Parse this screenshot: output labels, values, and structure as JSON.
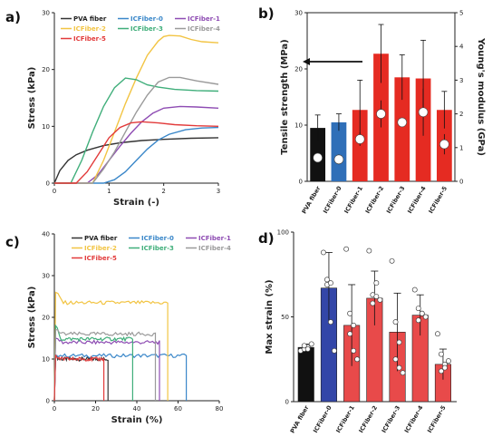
{
  "colors": {
    "PVA fiber": "#333333",
    "ICFiber-0": "#3a87c9",
    "ICFiber-1": "#8e4cb3",
    "ICFiber-2": "#f2c443",
    "ICFiber-3": "#3fae7a",
    "ICFiber-4": "#9a9a9a",
    "ICFiber-5": "#e23a3a"
  },
  "legend_order": [
    "PVA fiber",
    "ICFiber-0",
    "ICFiber-1",
    "ICFiber-2",
    "ICFiber-3",
    "ICFiber-4",
    "ICFiber-5"
  ],
  "chart_data": [
    {
      "panel": "a)",
      "type": "line",
      "xlabel": "Strain (-)",
      "ylabel": "Stress (kPa)",
      "xlim": [
        0,
        3
      ],
      "ylim": [
        0,
        30
      ],
      "xticks": [
        0,
        1,
        2,
        3
      ],
      "yticks": [
        0,
        10,
        20,
        30
      ],
      "series": [
        {
          "name": "PVA fiber",
          "x": [
            0,
            0.1,
            0.25,
            0.4,
            0.6,
            0.9,
            1.2,
            1.6,
            2.0,
            2.5,
            3.0
          ],
          "y": [
            0,
            2.2,
            4.0,
            5.0,
            5.8,
            6.6,
            7.1,
            7.5,
            7.7,
            7.9,
            8.0
          ]
        },
        {
          "name": "ICFiber-0",
          "x": [
            0,
            0.9,
            1.1,
            1.3,
            1.5,
            1.7,
            1.9,
            2.1,
            2.4,
            2.7,
            3.0
          ],
          "y": [
            0,
            0,
            0.6,
            2.0,
            4.0,
            6.0,
            7.6,
            8.6,
            9.4,
            9.7,
            9.8
          ]
        },
        {
          "name": "ICFiber-1",
          "x": [
            0,
            0.6,
            0.8,
            1.0,
            1.2,
            1.4,
            1.6,
            1.8,
            2.0,
            2.3,
            2.6,
            3.0
          ],
          "y": [
            0,
            0,
            1.5,
            4.0,
            6.5,
            8.8,
            10.8,
            12.3,
            13.2,
            13.5,
            13.4,
            13.2
          ]
        },
        {
          "name": "ICFiber-2",
          "x": [
            0,
            0.7,
            0.9,
            1.1,
            1.3,
            1.5,
            1.7,
            1.9,
            2.0,
            2.1,
            2.3,
            2.5,
            2.7,
            3.0
          ],
          "y": [
            0,
            0,
            4.0,
            9.0,
            14.0,
            18.5,
            22.5,
            25.0,
            25.8,
            26.0,
            25.9,
            25.3,
            24.9,
            24.7
          ]
        },
        {
          "name": "ICFiber-3",
          "x": [
            0,
            0.3,
            0.5,
            0.7,
            0.9,
            1.1,
            1.3,
            1.5,
            1.7,
            1.9,
            2.2,
            2.6,
            3.0
          ],
          "y": [
            0,
            0,
            4.0,
            9.0,
            13.5,
            16.8,
            18.5,
            18.2,
            17.3,
            16.9,
            16.5,
            16.3,
            16.2
          ]
        },
        {
          "name": "ICFiber-4",
          "x": [
            0,
            0.7,
            0.9,
            1.1,
            1.3,
            1.5,
            1.7,
            1.9,
            2.1,
            2.3,
            2.6,
            3.0
          ],
          "y": [
            0,
            0,
            2.5,
            5.5,
            9.0,
            12.5,
            15.5,
            17.8,
            18.6,
            18.6,
            18.0,
            17.4
          ]
        },
        {
          "name": "ICFiber-5",
          "x": [
            0,
            0.4,
            0.6,
            0.8,
            1.0,
            1.2,
            1.4,
            1.6,
            1.9,
            2.2,
            2.6,
            3.0
          ],
          "y": [
            0,
            0,
            2.0,
            5.0,
            8.0,
            9.8,
            10.6,
            10.8,
            10.6,
            10.3,
            10.1,
            10.0
          ]
        }
      ]
    },
    {
      "panel": "b)",
      "type": "bar",
      "ylabel": "Tensile strength (MPa)",
      "y2label": "Young's modulus (GPa)",
      "ylim": [
        0,
        30
      ],
      "yticks": [
        0,
        10,
        20,
        30
      ],
      "y2lim": [
        0,
        5
      ],
      "y2ticks": [
        0,
        1,
        2,
        3,
        4,
        5
      ],
      "categories": [
        "PVA fiber",
        "ICFiber-0",
        "ICFiber-1",
        "ICFiber-2",
        "ICFiber-3",
        "ICFiber-4",
        "ICFiber-5"
      ],
      "values": [
        9.5,
        10.5,
        12.7,
        22.7,
        18.5,
        18.3,
        12.7
      ],
      "errors": [
        2.3,
        1.5,
        5.3,
        5.2,
        4.0,
        6.8,
        3.3
      ],
      "modulus": [
        0.7,
        0.65,
        1.25,
        2.0,
        1.75,
        2.05,
        1.1
      ],
      "modulus_errors": [
        0,
        0.15,
        0.2,
        0.4,
        0,
        0.7,
        0.3
      ]
    },
    {
      "panel": "c)",
      "type": "line",
      "xlabel": "Strain (%)",
      "ylabel": "Stress (kPa)",
      "xlim": [
        0,
        80
      ],
      "ylim": [
        0,
        40
      ],
      "xticks": [
        0,
        20,
        40,
        60,
        80
      ],
      "yticks": [
        0,
        10,
        20,
        30,
        40
      ],
      "series": [
        {
          "name": "PVA fiber",
          "level": 10,
          "end": 26,
          "start_peak": 10.5
        },
        {
          "name": "ICFiber-0",
          "level": 10.8,
          "end": 64,
          "start_peak": 11
        },
        {
          "name": "ICFiber-1",
          "level": 14,
          "end": 51,
          "start_peak": 15
        },
        {
          "name": "ICFiber-2",
          "level": 23.5,
          "end": 55,
          "start_peak": 26
        },
        {
          "name": "ICFiber-3",
          "level": 14.8,
          "end": 38,
          "start_peak": 18
        },
        {
          "name": "ICFiber-4",
          "level": 16,
          "end": 49,
          "start_peak": 17
        },
        {
          "name": "ICFiber-5",
          "level": 10,
          "end": 24,
          "start_peak": 11
        }
      ]
    },
    {
      "panel": "d)",
      "type": "bar",
      "ylabel": "Max strain (%)",
      "ylim": [
        0,
        100
      ],
      "yticks": [
        0,
        50,
        100
      ],
      "categories": [
        "PVA fiber",
        "ICFiber-0",
        "ICFiber-1",
        "ICFiber-2",
        "ICFiber-3",
        "ICFiber-4",
        "ICFiber-5"
      ],
      "values": [
        32,
        67,
        45,
        61,
        41,
        51,
        22
      ],
      "errors": [
        2,
        21,
        24,
        16,
        23,
        12,
        9
      ],
      "points": [
        [
          30,
          31,
          32,
          33,
          31,
          34
        ],
        [
          88,
          69,
          70,
          72,
          47,
          30
        ],
        [
          90,
          52,
          45,
          40,
          30,
          25
        ],
        [
          89,
          63,
          70,
          58,
          62,
          60
        ],
        [
          83,
          47,
          35,
          25,
          20,
          17
        ],
        [
          66,
          55,
          52,
          48,
          52,
          50
        ],
        [
          40,
          28,
          22,
          18,
          20,
          24
        ]
      ]
    }
  ],
  "labels": {
    "a": "a)",
    "b": "b)",
    "c": "c)",
    "d": "d)"
  }
}
